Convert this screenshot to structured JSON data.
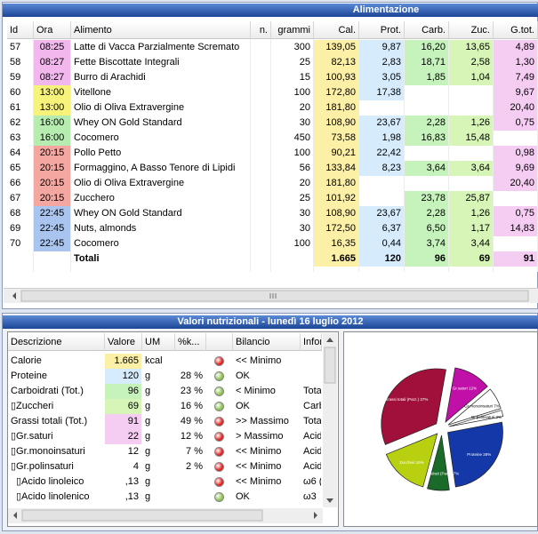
{
  "top_panel": {
    "title": "Alimentazione",
    "columns": [
      "Id",
      "Ora",
      "Alimento",
      "n.",
      "grammi",
      "Cal.",
      "Prot.",
      "Carb.",
      "Zuc.",
      "G.tot."
    ],
    "column_colors": [
      null,
      null,
      null,
      null,
      null,
      "#fcefa6",
      "#d6ebfb",
      "#c6f3bc",
      "#d6f5b6",
      "#f5cdf3"
    ],
    "ora_colors": {
      "08:25": "#f2b8ee",
      "08:27": "#f2b8ee",
      "13:00": "#f6f27a",
      "16:00": "#b6ecb0",
      "20:15": "#f4a6a0",
      "22:45": "#a9c4ee"
    },
    "rows": [
      [
        "57",
        "08:25",
        "Latte di Vacca Parzialmente Scremato",
        null,
        "300",
        "139,05",
        "9,87",
        "16,20",
        "13,65",
        "4,89"
      ],
      [
        "58",
        "08:27",
        "Fette Biscottate Integrali",
        null,
        "25",
        "82,13",
        "2,83",
        "18,71",
        "2,58",
        "1,30"
      ],
      [
        "59",
        "08:27",
        "Burro di Arachidi",
        null,
        "15",
        "100,93",
        "3,05",
        "1,85",
        "1,04",
        "7,49"
      ],
      [
        "60",
        "13:00",
        "Vitellone",
        null,
        "100",
        "172,80",
        "17,38",
        null,
        null,
        "9,67"
      ],
      [
        "61",
        "13:00",
        "Olio di Oliva Extravergine",
        null,
        "20",
        "181,80",
        null,
        null,
        null,
        "20,40"
      ],
      [
        "62",
        "16:00",
        "Whey ON Gold Standard",
        null,
        "30",
        "108,90",
        "23,67",
        "2,28",
        "1,26",
        "0,75"
      ],
      [
        "63",
        "16:00",
        "Cocomero",
        null,
        "450",
        "73,58",
        "1,98",
        "16,83",
        "15,48",
        null
      ],
      [
        "64",
        "20:15",
        "Pollo Petto",
        null,
        "100",
        "90,21",
        "22,42",
        null,
        null,
        "0,98"
      ],
      [
        "65",
        "20:15",
        "Formaggino, A Basso Tenore di Lipidi",
        null,
        "56",
        "133,84",
        "8,23",
        "3,64",
        "3,64",
        "9,69"
      ],
      [
        "66",
        "20:15",
        "Olio di Oliva Extravergine",
        null,
        "20",
        "181,80",
        null,
        null,
        null,
        "20,40"
      ],
      [
        "67",
        "20:15",
        "Zucchero",
        null,
        "25",
        "101,92",
        null,
        "23,78",
        "25,87",
        null
      ],
      [
        "68",
        "22:45",
        "Whey ON Gold Standard",
        null,
        "30",
        "108,90",
        "23,67",
        "2,28",
        "1,26",
        "0,75"
      ],
      [
        "69",
        "22:45",
        "Nuts, almonds",
        null,
        "30",
        "172,50",
        "6,37",
        "6,50",
        "1,17",
        "14,83"
      ],
      [
        "70",
        "22:45",
        "Cocomero",
        null,
        "100",
        "16,35",
        "0,44",
        "3,74",
        "3,44",
        null
      ]
    ],
    "totals": {
      "label": "Totali",
      "values": [
        "1.665",
        "120",
        "96",
        "69",
        "91"
      ]
    }
  },
  "bottom_panel": {
    "title": "Valori nutrizionali - lunedì 16 luglio 2012",
    "columns": [
      "Descrizione",
      "Valore",
      "UM",
      "%k...",
      "Bilancio",
      "Infor"
    ],
    "rows": [
      {
        "descrizione": "Calorie",
        "valore": "1.665",
        "valore_color": "#fcefa6",
        "um": "kcal",
        "status": "red",
        "bilancio": "<< Minimo"
      },
      {
        "descrizione": "Proteine",
        "valore": "120",
        "valore_color": "#d6ebfb",
        "um": "g",
        "perc": "28 %",
        "status": "green",
        "bilancio": "OK"
      },
      {
        "descrizione": "Carboidrati (Tot.)",
        "valore": "96",
        "valore_color": "#c6f3bc",
        "um": "g",
        "perc": "23 %",
        "status": "green",
        "bilancio": "< Minimo",
        "info": "Tota"
      },
      {
        "descrizione": "▯Zuccheri",
        "valore": "69",
        "valore_color": "#d6f5b6",
        "um": "g",
        "perc": "16 %",
        "status": "green",
        "bilancio": "OK",
        "info": "Carb"
      },
      {
        "descrizione": "Grassi totali (Tot.)",
        "valore": "91",
        "valore_color": "#f5cdf3",
        "um": "g",
        "perc": "49 %",
        "status": "red",
        "bilancio": ">> Massimo",
        "info": "Tota"
      },
      {
        "descrizione": "▯Gr.saturi",
        "valore": "22",
        "valore_color": "#f5cdf3",
        "um": "g",
        "perc": "12 %",
        "status": "red",
        "bilancio": "> Massimo",
        "info": "Acid"
      },
      {
        "descrizione": "▯Gr.monoinsaturi",
        "valore": "12",
        "um": "g",
        "perc": "7 %",
        "status": "red",
        "bilancio": "<< Minimo",
        "info": "Acid"
      },
      {
        "descrizione": "▯Gr.polinsaturi",
        "valore": "4",
        "um": "g",
        "perc": "2 %",
        "status": "red",
        "bilancio": "<< Minimo",
        "info": "Acid"
      },
      {
        "descrizione": "▯Acido linoleico",
        "indent": true,
        "valore": ",13",
        "um": "g",
        "status": "red",
        "bilancio": "<< Minimo",
        "info": "ω6 ("
      },
      {
        "descrizione": "▯Acido linolenico",
        "indent": true,
        "valore": ",13",
        "um": "g",
        "status": "green",
        "bilancio": "OK",
        "info": "ω3"
      }
    ]
  },
  "chart_data": {
    "type": "pie",
    "categories": [
      "Gr.saturi 12%",
      "Gr.monoinsaturi 7%",
      "Gr.polinsaturi 2%",
      "Proteine 28%",
      "Carboidrati (Parz.) 7%",
      "Zuccheri 16%",
      "Grassi totali (Parz.) 37%"
    ],
    "values": [
      12,
      7,
      2,
      28,
      7,
      16,
      37
    ],
    "colors": [
      "#c010a8",
      "#ffffff",
      "#ffffff",
      "#1438a8",
      "#1a6a2a",
      "#b8d010",
      "#a0103a"
    ]
  }
}
